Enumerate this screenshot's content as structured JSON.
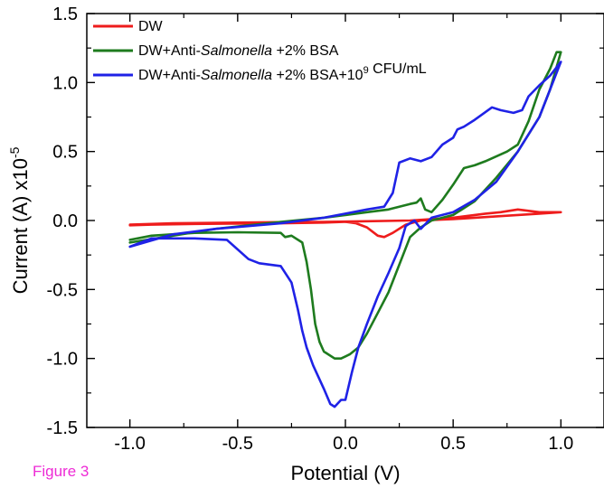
{
  "figure_label": "Figure 3",
  "colors": {
    "figure_label": "#ee2bd6",
    "axis": "#000000"
  },
  "chart_data": {
    "type": "line",
    "xlabel": "Potential (V)",
    "ylabel": "Current (A) x10",
    "ylabel_exponent": "-5",
    "xlim": [
      -1.2,
      1.2
    ],
    "ylim": [
      -1.5,
      1.5
    ],
    "x_ticks": [
      -1.0,
      -0.5,
      0.0,
      0.5,
      1.0
    ],
    "x_tick_labels": [
      "-1.0",
      "-0.5",
      "0.0",
      "0.5",
      "1.0"
    ],
    "y_ticks": [
      -1.5,
      -1.0,
      -0.5,
      0.0,
      0.5,
      1.0,
      1.5
    ],
    "y_tick_labels": [
      "-1.5",
      "-1.0",
      "-0.5",
      "0.0",
      "0.5",
      "1.0",
      "1.5"
    ],
    "grid": false,
    "legend_position": "top-left",
    "series": [
      {
        "name": "DW",
        "legend_parts": [
          {
            "t": "DW"
          }
        ],
        "color": "#ee1c1c",
        "points": [
          [
            -1.0,
            -0.035
          ],
          [
            -0.9,
            -0.03
          ],
          [
            -0.7,
            -0.025
          ],
          [
            -0.5,
            -0.022
          ],
          [
            -0.3,
            -0.02
          ],
          [
            -0.1,
            -0.015
          ],
          [
            0.0,
            -0.01
          ],
          [
            0.05,
            -0.02
          ],
          [
            0.1,
            -0.05
          ],
          [
            0.15,
            -0.11
          ],
          [
            0.18,
            -0.12
          ],
          [
            0.22,
            -0.09
          ],
          [
            0.28,
            -0.03
          ],
          [
            0.35,
            0.0
          ],
          [
            0.5,
            0.01
          ],
          [
            0.7,
            0.03
          ],
          [
            0.9,
            0.05
          ],
          [
            1.0,
            0.06
          ],
          [
            0.9,
            0.06
          ],
          [
            0.8,
            0.08
          ],
          [
            0.72,
            0.06
          ],
          [
            0.65,
            0.05
          ],
          [
            0.6,
            0.04
          ],
          [
            0.55,
            0.03
          ],
          [
            0.5,
            0.02
          ],
          [
            0.3,
            0.0
          ],
          [
            0.1,
            -0.005
          ],
          [
            -0.1,
            -0.01
          ],
          [
            -0.3,
            -0.012
          ],
          [
            -0.5,
            -0.015
          ],
          [
            -0.8,
            -0.02
          ],
          [
            -1.0,
            -0.03
          ]
        ]
      },
      {
        "name": "DW+Anti-Salmonella +2% BSA",
        "legend_parts": [
          {
            "t": "DW+Anti-"
          },
          {
            "t": "Salmonella",
            "italic": true
          },
          {
            "t": " +2% BSA"
          }
        ],
        "color": "#1e7b1e",
        "points": [
          [
            -1.0,
            -0.14
          ],
          [
            -0.9,
            -0.11
          ],
          [
            -0.7,
            -0.09
          ],
          [
            -0.5,
            -0.085
          ],
          [
            -0.3,
            -0.09
          ],
          [
            -0.28,
            -0.12
          ],
          [
            -0.25,
            -0.11
          ],
          [
            -0.2,
            -0.16
          ],
          [
            -0.18,
            -0.3
          ],
          [
            -0.16,
            -0.5
          ],
          [
            -0.14,
            -0.75
          ],
          [
            -0.12,
            -0.88
          ],
          [
            -0.1,
            -0.95
          ],
          [
            -0.05,
            -1.0
          ],
          [
            -0.02,
            -1.0
          ],
          [
            0.02,
            -0.97
          ],
          [
            0.06,
            -0.92
          ],
          [
            0.1,
            -0.82
          ],
          [
            0.15,
            -0.67
          ],
          [
            0.2,
            -0.52
          ],
          [
            0.25,
            -0.32
          ],
          [
            0.3,
            -0.12
          ],
          [
            0.35,
            -0.05
          ],
          [
            0.4,
            0.0
          ],
          [
            0.5,
            0.04
          ],
          [
            0.6,
            0.14
          ],
          [
            0.7,
            0.31
          ],
          [
            0.8,
            0.5
          ],
          [
            0.9,
            0.75
          ],
          [
            0.95,
            0.95
          ],
          [
            1.0,
            1.22
          ],
          [
            0.98,
            1.22
          ],
          [
            0.95,
            1.1
          ],
          [
            0.9,
            0.95
          ],
          [
            0.85,
            0.72
          ],
          [
            0.8,
            0.55
          ],
          [
            0.75,
            0.5
          ],
          [
            0.65,
            0.43
          ],
          [
            0.6,
            0.4
          ],
          [
            0.55,
            0.38
          ],
          [
            0.5,
            0.26
          ],
          [
            0.45,
            0.15
          ],
          [
            0.4,
            0.06
          ],
          [
            0.37,
            0.08
          ],
          [
            0.35,
            0.16
          ],
          [
            0.33,
            0.13
          ],
          [
            0.3,
            0.12
          ],
          [
            0.25,
            0.1
          ],
          [
            0.2,
            0.08
          ],
          [
            0.1,
            0.06
          ],
          [
            0.0,
            0.04
          ],
          [
            -0.1,
            0.02
          ],
          [
            -0.3,
            -0.01
          ],
          [
            -0.6,
            -0.06
          ],
          [
            -1.0,
            -0.16
          ]
        ]
      },
      {
        "name": "DW+Anti-Salmonella +2% BSA+10⁹ CFU/mL",
        "legend_parts": [
          {
            "t": "DW+Anti-"
          },
          {
            "t": "Salmonella",
            "italic": true
          },
          {
            "t": " +2% BSA+10"
          },
          {
            "t": "9",
            "sup": true
          },
          {
            "t": " CFU/mL"
          }
        ],
        "color": "#1f22e6",
        "points": [
          [
            -1.0,
            -0.19
          ],
          [
            -0.9,
            -0.13
          ],
          [
            -0.7,
            -0.13
          ],
          [
            -0.55,
            -0.14
          ],
          [
            -0.45,
            -0.28
          ],
          [
            -0.4,
            -0.31
          ],
          [
            -0.3,
            -0.33
          ],
          [
            -0.25,
            -0.45
          ],
          [
            -0.22,
            -0.65
          ],
          [
            -0.2,
            -0.8
          ],
          [
            -0.18,
            -0.92
          ],
          [
            -0.15,
            -1.05
          ],
          [
            -0.1,
            -1.22
          ],
          [
            -0.07,
            -1.33
          ],
          [
            -0.05,
            -1.35
          ],
          [
            -0.02,
            -1.3
          ],
          [
            0.0,
            -1.3
          ],
          [
            0.03,
            -1.1
          ],
          [
            0.06,
            -0.92
          ],
          [
            0.1,
            -0.75
          ],
          [
            0.15,
            -0.55
          ],
          [
            0.2,
            -0.38
          ],
          [
            0.25,
            -0.2
          ],
          [
            0.28,
            -0.04
          ],
          [
            0.32,
            0.0
          ],
          [
            0.35,
            -0.06
          ],
          [
            0.4,
            0.02
          ],
          [
            0.5,
            0.06
          ],
          [
            0.6,
            0.15
          ],
          [
            0.7,
            0.28
          ],
          [
            0.8,
            0.5
          ],
          [
            0.9,
            0.75
          ],
          [
            1.0,
            1.15
          ],
          [
            0.95,
            1.05
          ],
          [
            0.9,
            0.98
          ],
          [
            0.85,
            0.9
          ],
          [
            0.82,
            0.8
          ],
          [
            0.78,
            0.78
          ],
          [
            0.72,
            0.8
          ],
          [
            0.68,
            0.82
          ],
          [
            0.6,
            0.73
          ],
          [
            0.55,
            0.68
          ],
          [
            0.52,
            0.66
          ],
          [
            0.5,
            0.6
          ],
          [
            0.45,
            0.55
          ],
          [
            0.4,
            0.46
          ],
          [
            0.35,
            0.43
          ],
          [
            0.3,
            0.45
          ],
          [
            0.25,
            0.42
          ],
          [
            0.22,
            0.2
          ],
          [
            0.18,
            0.1
          ],
          [
            0.1,
            0.08
          ],
          [
            0.0,
            0.05
          ],
          [
            -0.1,
            0.02
          ],
          [
            -0.3,
            -0.02
          ],
          [
            -0.6,
            -0.06
          ],
          [
            -0.8,
            -0.1
          ],
          [
            -1.0,
            -0.19
          ]
        ]
      }
    ]
  }
}
